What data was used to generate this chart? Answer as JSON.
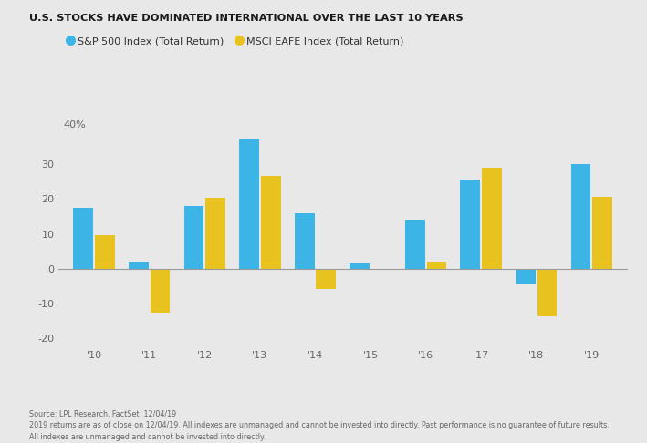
{
  "title": "U.S. STOCKS HAVE DOMINATED INTERNATIONAL OVER THE LAST 10 YEARS",
  "years": [
    "'10",
    "'11",
    "'12",
    "'13",
    "'14",
    "'15",
    "'16",
    "'17",
    "'18",
    "'19"
  ],
  "sp500_values": [
    17.5,
    2.1,
    18.0,
    37.0,
    16.0,
    1.4,
    14.0,
    25.5,
    -4.5,
    30.0
  ],
  "eafe_values": [
    9.5,
    -12.5,
    20.3,
    26.5,
    -5.7,
    -0.4,
    2.0,
    29.0,
    -13.5,
    20.5
  ],
  "sp500_color": "#3CB4E5",
  "eafe_color": "#E8C320",
  "background_color": "#E8E8E8",
  "ylim": [
    -22,
    44
  ],
  "yticks": [
    -20,
    -10,
    0,
    10,
    20,
    30
  ],
  "ytick_labels": [
    "-20",
    "-10",
    "0",
    "10",
    "20",
    "30"
  ],
  "ylabel_40": "40%",
  "source_text": "Source: LPL Research, FactSet  12/04/19",
  "footnote1": "2019 returns are as of close on 12/04/19. All indexes are unmanaged and cannot be invested into directly. Past performance is no guarantee of future results.",
  "footnote2": "All indexes are unmanaged and cannot be invested into directly.",
  "legend_sp500": "S&P 500 Index (Total Return)",
  "legend_eafe": "MSCI EAFE Index (Total Return)"
}
